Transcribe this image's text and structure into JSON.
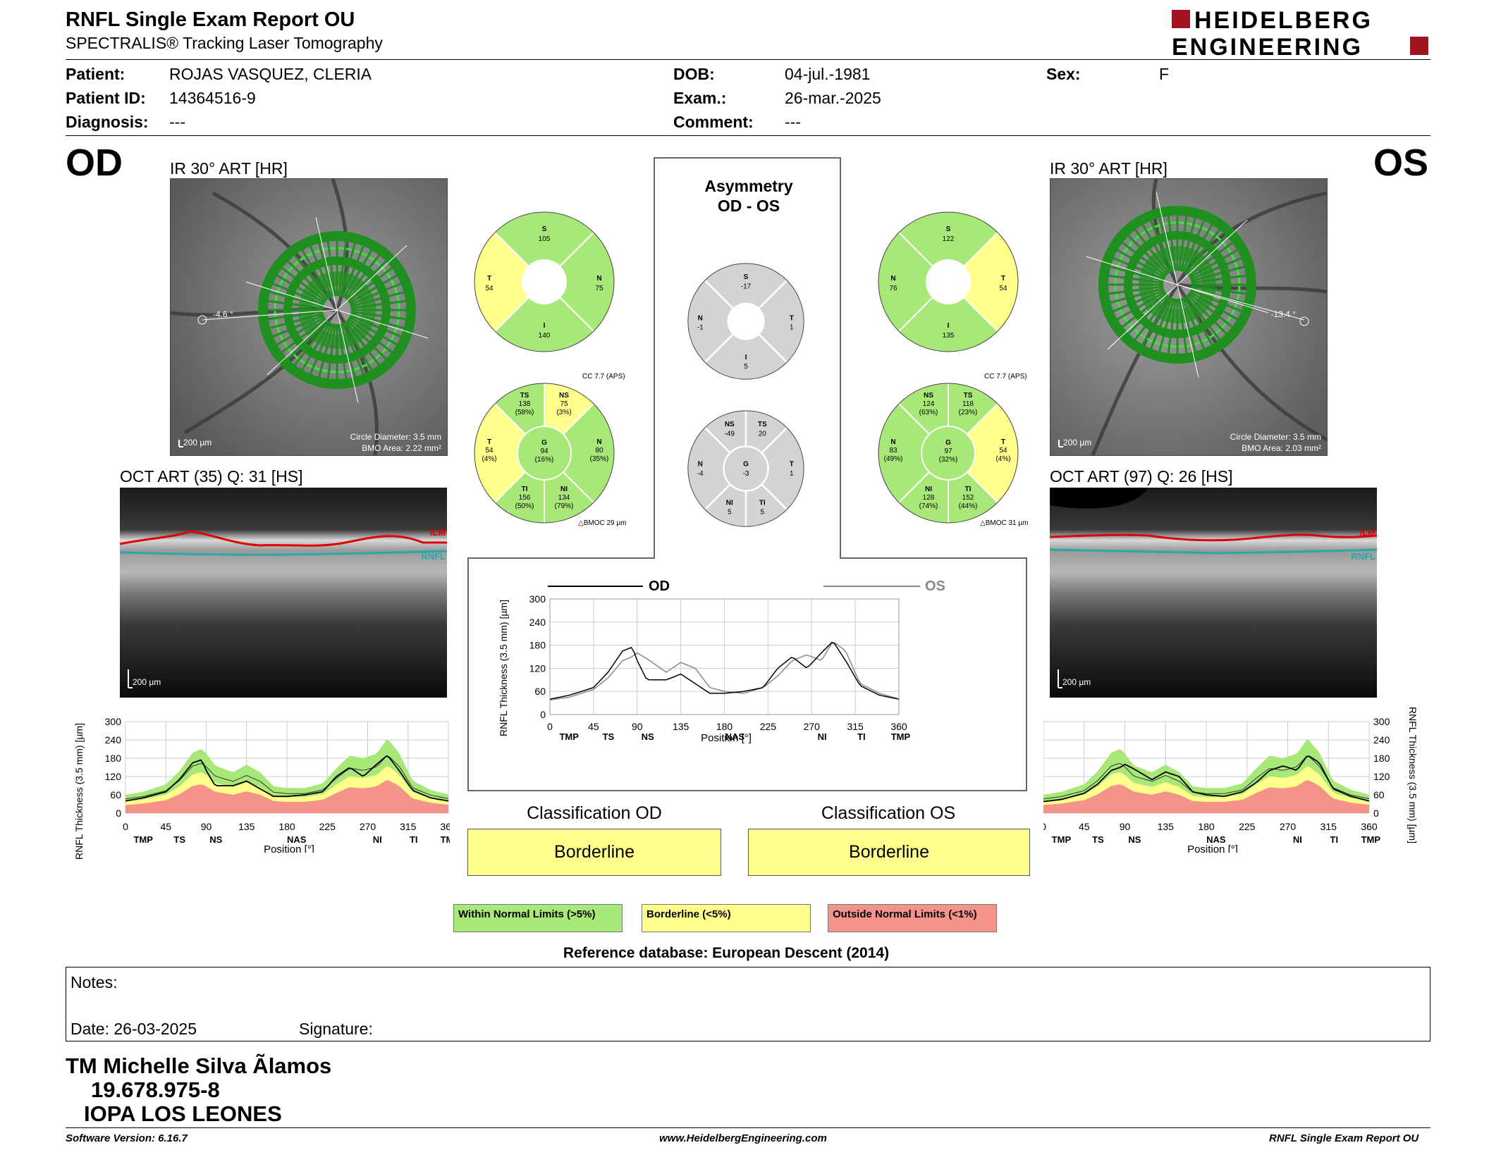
{
  "header": {
    "title": "RNFL Single Exam Report OU",
    "subtitle": "SPECTRALIS® Tracking Laser Tomography",
    "logo_line1": "HEIDELBERG",
    "logo_line2": "ENGINEERING"
  },
  "patient": {
    "patient_label": "Patient:",
    "patient_value": "ROJAS VASQUEZ, CLERIA",
    "id_label": "Patient ID:",
    "id_value": "14364516-9",
    "diag_label": "Diagnosis:",
    "diag_value": "---",
    "dob_label": "DOB:",
    "dob_value": "04-jul.-1981",
    "exam_label": "Exam.:",
    "exam_value": "26-mar.-2025",
    "comment_label": "Comment:",
    "comment_value": "---",
    "sex_label": "Sex:",
    "sex_value": "F"
  },
  "od": {
    "eye": "OD",
    "ir_title": "IR 30° ART [HR]",
    "angle": "-4.6 °",
    "scale": "200 µm",
    "circle_diameter": "Circle Diameter: 3.5 mm",
    "bmo_area": "BMO Area: 2.22 mm²",
    "oct_title": "OCT ART (35) Q: 31 [HS]",
    "oct_scale": "200 µm",
    "ilm": "ILM",
    "rnfl": "RNFL",
    "cc": "CC 7.7 (APS)",
    "bmoc": "BMOC 29 µm",
    "quad": {
      "S": "105",
      "N": "75",
      "I": "140",
      "T": "54"
    },
    "sect": {
      "TS": [
        "138",
        "(58%)"
      ],
      "NS": [
        "75",
        "(3%)"
      ],
      "N": [
        "80",
        "(35%)"
      ],
      "NI": [
        "134",
        "(79%)"
      ],
      "TI": [
        "156",
        "(50%)"
      ],
      "T": [
        "54",
        "(4%)"
      ],
      "G": [
        "94",
        "(16%)"
      ]
    }
  },
  "os": {
    "eye": "OS",
    "ir_title": "IR 30° ART [HR]",
    "angle": "-13.4 °",
    "scale": "200 µm",
    "circle_diameter": "Circle Diameter: 3.5 mm",
    "bmo_area": "BMO Area: 2.03 mm²",
    "oct_title": "OCT ART (97) Q: 26 [HS]",
    "oct_scale": "200 µm",
    "ilm": "ILM",
    "rnfl": "RNFL",
    "cc": "CC 7.7 (APS)",
    "bmoc": "BMOC 31 µm",
    "quad": {
      "S": "122",
      "N": "76",
      "I": "135",
      "T": "54"
    },
    "sect": {
      "NS": [
        "124",
        "(63%)"
      ],
      "TS": [
        "118",
        "(23%)"
      ],
      "T": [
        "54",
        "(4%)"
      ],
      "TI": [
        "152",
        "(44%)"
      ],
      "NI": [
        "128",
        "(74%)"
      ],
      "N": [
        "83",
        "(49%)"
      ],
      "G": [
        "97",
        "(32%)"
      ]
    }
  },
  "asym": {
    "title1": "Asymmetry",
    "title2": "OD - OS",
    "quad": {
      "S": "-17",
      "N": "-1",
      "I": "5",
      "T": "1"
    },
    "sect": {
      "NS": "-49",
      "TS": "20",
      "N": "-4",
      "G": "-3",
      "T": "1",
      "NI": "5",
      "TI": "5"
    }
  },
  "graph": {
    "od_label": "OD",
    "os_label": "OS",
    "ylabel": "RNFL Thickness (3.5 mm) [µm]",
    "xlabel": "Position [°]",
    "yticks": [
      "300",
      "240",
      "180",
      "120",
      "60",
      "0"
    ],
    "xticks": [
      "0",
      "45",
      "90",
      "135",
      "180",
      "225",
      "270",
      "315",
      "360"
    ],
    "sectors": [
      "TMP",
      "TS",
      "NS",
      "NAS",
      "NI",
      "TI",
      "TMP"
    ]
  },
  "chart_data": {
    "type": "line",
    "xlabel": "Position [°]",
    "ylabel": "RNFL Thickness (3.5 mm) [µm]",
    "xlim": [
      0,
      360
    ],
    "ylim": [
      0,
      300
    ],
    "x": [
      0,
      20,
      45,
      60,
      75,
      85,
      90,
      100,
      120,
      135,
      150,
      165,
      180,
      200,
      220,
      235,
      250,
      265,
      280,
      292,
      305,
      320,
      340,
      360
    ],
    "series": [
      {
        "name": "OD",
        "values": [
          40,
          50,
          70,
          110,
          165,
          175,
          140,
          90,
          90,
          105,
          80,
          55,
          55,
          60,
          70,
          120,
          150,
          120,
          160,
          190,
          140,
          75,
          50,
          40
        ]
      },
      {
        "name": "OS",
        "values": [
          38,
          45,
          65,
          95,
          140,
          150,
          160,
          145,
          110,
          135,
          120,
          70,
          60,
          55,
          70,
          100,
          140,
          155,
          140,
          190,
          165,
          80,
          55,
          40
        ]
      }
    ]
  },
  "classification": {
    "od_label": "Classification OD",
    "od_value": "Borderline",
    "os_label": "Classification OS",
    "os_value": "Borderline"
  },
  "legend": {
    "green": "Within Normal Limits (>5%)",
    "yellow": "Borderline (<5%)",
    "red": "Outside Normal Limits (<1%)",
    "refdb": "Reference database: European Descent (2014)"
  },
  "notes": {
    "notes_label": "Notes:",
    "date_label": "Date: 26-03-2025",
    "signature_label": "Signature:"
  },
  "signer": {
    "name": "TM Michelle Silva Ãlamos",
    "rut": "19.678.975-8",
    "place": "IOPA LOS LEONES"
  },
  "footer": {
    "version": "Software Version: 6.16.7",
    "url": "www.HeidelbergEngineering.com",
    "report": "RNFL Single Exam Report OU"
  },
  "colors": {
    "normal": "#a8e878",
    "borderline": "#ffff8c",
    "outside": "#f4938a",
    "grey": "#d3d3d3",
    "circle": "#1f8f1f",
    "ilm": "#e00000",
    "rnfl": "#2aa7a7"
  }
}
